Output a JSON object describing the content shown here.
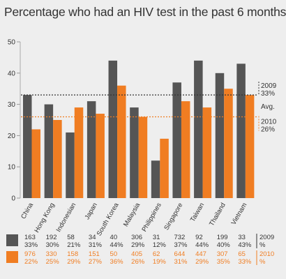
{
  "chart_data": {
    "type": "bar",
    "title": "Percentage who had an HIV test in the past 6 months",
    "categories": [
      "China",
      "Hong Kong",
      "Indonesian",
      "Japan",
      "South Korea",
      "Malaysia",
      "Philippines",
      "Singapore",
      "Taiwan",
      "Thailand",
      "Vietnam"
    ],
    "series": [
      {
        "name": "2009",
        "color": "#555555",
        "values": [
          33,
          30,
          21,
          31,
          44,
          29,
          12,
          37,
          44,
          40,
          43
        ],
        "n": [
          "163",
          "192",
          "58",
          "34",
          "40",
          "306",
          "31",
          "732",
          "92",
          "199",
          "33"
        ],
        "pct_labels": [
          "33%",
          "30%",
          "21%",
          "31%",
          "44%",
          "29%",
          "12%",
          "37%",
          "44%",
          "40%",
          "43%"
        ]
      },
      {
        "name": "2010",
        "color": "#f07d22",
        "values": [
          22,
          25,
          29,
          27,
          36,
          26,
          19,
          31,
          29,
          35,
          33
        ],
        "n": [
          "976",
          "330",
          "158",
          "151",
          "50",
          "405",
          "62",
          "644",
          "447",
          "307",
          "65"
        ],
        "pct_labels": [
          "22%",
          "25%",
          "29%",
          "27%",
          "36%",
          "26%",
          "19%",
          "31%",
          "29%",
          "35%",
          "33%"
        ]
      }
    ],
    "ylim": [
      0,
      50
    ],
    "yticks": [
      0,
      10,
      20,
      30,
      40,
      50
    ],
    "averages": [
      {
        "series": "2009",
        "value": 33,
        "year_label": "2009",
        "value_label": "33%",
        "color": "#333333"
      },
      {
        "series": "2010",
        "value": 26,
        "year_label": "2010",
        "value_label": "26%",
        "color": "#f07d22"
      }
    ],
    "avg_label": "Avg.",
    "table_unit": "%"
  }
}
